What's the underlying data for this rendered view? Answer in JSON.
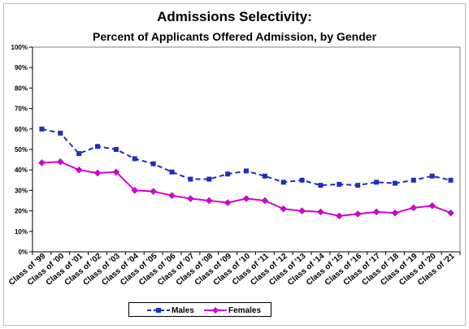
{
  "chart_data": {
    "type": "line",
    "title": "Admissions Selectivity:",
    "subtitle": "Percent of Applicants Offered Admission, by Gender",
    "ylim": [
      0,
      100
    ],
    "y_ticks": [
      "0%",
      "10%",
      "20%",
      "30%",
      "40%",
      "50%",
      "60%",
      "70%",
      "80%",
      "90%",
      "100%"
    ],
    "categories": [
      "Class of '99",
      "Class of '00",
      "Class of '01",
      "Class of '02",
      "Class of '03",
      "Class of '04",
      "Class of '05",
      "Class of '06",
      "Class of '07",
      "Class of '08",
      "Class of '09",
      "Class of '10",
      "Class of '11",
      "Class of '12",
      "Class of '13",
      "Class of '14",
      "Class of '15",
      "Class of '16",
      "Class of '17",
      "Class of '18",
      "Class of '19",
      "Class of '20",
      "Class of '21"
    ],
    "series": [
      {
        "name": "Males",
        "color": "#1f2ebd",
        "style": "dashed",
        "marker": "square",
        "values": [
          60,
          58,
          48,
          51.5,
          50,
          45.5,
          43,
          39,
          35.5,
          35.5,
          38,
          39.5,
          37,
          34,
          35,
          32.5,
          33,
          32.5,
          34,
          33.5,
          35,
          37,
          35
        ]
      },
      {
        "name": "Females",
        "color": "#d400d4",
        "style": "solid",
        "marker": "diamond",
        "values": [
          43.5,
          44,
          40,
          38.5,
          39,
          30,
          29.5,
          27.5,
          26,
          25,
          24,
          26,
          25,
          21,
          20,
          19.5,
          17.5,
          18.5,
          19.5,
          19,
          21.5,
          22.5,
          19
        ]
      }
    ],
    "grid": false,
    "legend_position": "bottom"
  }
}
